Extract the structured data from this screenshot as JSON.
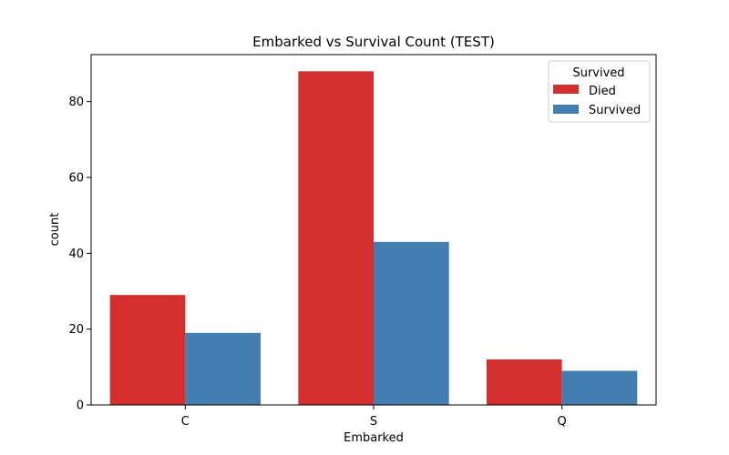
{
  "chart_data": {
    "type": "bar",
    "title": "Embarked vs Survival Count (TEST)",
    "xlabel": "Embarked",
    "ylabel": "count",
    "categories": [
      "C",
      "S",
      "Q"
    ],
    "series": [
      {
        "name": "Died",
        "values": [
          29,
          88,
          12
        ],
        "color": "#d32f2f"
      },
      {
        "name": "Survived",
        "values": [
          19,
          43,
          9
        ],
        "color": "#447eb0"
      }
    ],
    "ylim": [
      0,
      92.4
    ],
    "yticks": [
      0,
      20,
      40,
      60,
      80
    ],
    "legend": {
      "title": "Survived",
      "position": "top-right"
    },
    "grid": false
  }
}
